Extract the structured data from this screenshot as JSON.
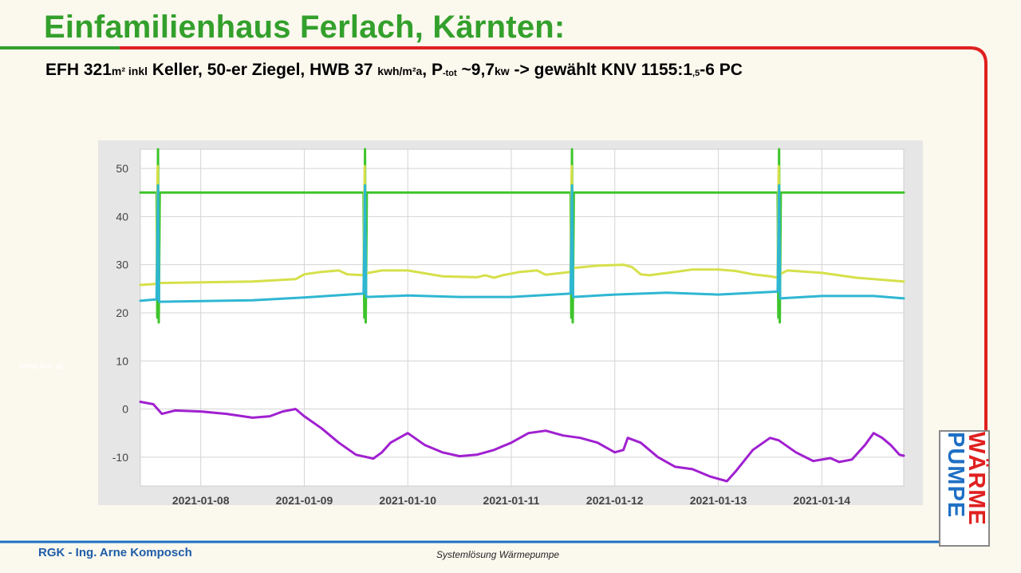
{
  "slide": {
    "title": "Einfamilienhaus Ferlach, Kärnten:",
    "subtitle_parts": {
      "p1": "EFH 321",
      "p2": "m² inkl",
      "p3": " Keller, 50-er Ziegel, HWB 37 ",
      "p4": "kwh/m²a",
      "p5": ", P",
      "p6": "-tot",
      "p7": " ~9,7",
      "p8": "kw",
      "p9": " -> gewählt KNV 1155:1",
      "p10": ",5",
      "p11": "-6 PC"
    },
    "watermark": "www.knv.at",
    "logo_line1": "WÄRME",
    "logo_line2": "PUMPE",
    "footer_left": "RGK - Ing. Arne Komposch",
    "footer_center": "Systemlösung Wärmepumpe"
  },
  "colors": {
    "title_green": "#33a02c",
    "frame_red": "#e02020",
    "frame_green": "#33a02c",
    "footer_blue": "#1f5da8",
    "series_green": "#3ec42c",
    "series_yellow": "#d6e04a",
    "series_cyan": "#2fb7d2",
    "series_purple": "#a020d0"
  },
  "chart_data": {
    "type": "line",
    "x_axis": {
      "type": "time",
      "start": "2021-01-07T10:00",
      "end": "2021-01-14T19:00",
      "tick_labels": [
        "2021-01-08",
        "2021-01-09",
        "2021-01-10",
        "2021-01-11",
        "2021-01-12",
        "2021-01-13",
        "2021-01-14"
      ]
    },
    "y_axis": {
      "ylim": [
        -16,
        54
      ],
      "ticks": [
        50,
        40,
        30,
        20,
        10,
        0,
        -10
      ]
    },
    "grid": true,
    "legend": "none",
    "series": [
      {
        "color": "#3ec42c",
        "points": [
          [
            "2021-01-07T10:00",
            45
          ],
          [
            "2021-01-07T13:45",
            45
          ],
          [
            "2021-01-07T13:55",
            19
          ],
          [
            "2021-01-07T14:05",
            54
          ],
          [
            "2021-01-07T14:15",
            18
          ],
          [
            "2021-01-07T14:30",
            45
          ],
          [
            "2021-01-09T13:45",
            45
          ],
          [
            "2021-01-09T13:55",
            19
          ],
          [
            "2021-01-09T14:05",
            54
          ],
          [
            "2021-01-09T14:15",
            18
          ],
          [
            "2021-01-09T14:30",
            45
          ],
          [
            "2021-01-11T13:45",
            45
          ],
          [
            "2021-01-11T13:55",
            19
          ],
          [
            "2021-01-11T14:05",
            54
          ],
          [
            "2021-01-11T14:15",
            18
          ],
          [
            "2021-01-11T14:30",
            45
          ],
          [
            "2021-01-13T13:45",
            45
          ],
          [
            "2021-01-13T13:55",
            19
          ],
          [
            "2021-01-13T14:05",
            54
          ],
          [
            "2021-01-13T14:15",
            18
          ],
          [
            "2021-01-13T14:30",
            45
          ],
          [
            "2021-01-14T19:00",
            45
          ]
        ]
      },
      {
        "color": "#d6e04a",
        "points": [
          [
            "2021-01-07T10:00",
            25.8
          ],
          [
            "2021-01-07T13:45",
            26.0
          ],
          [
            "2021-01-07T14:00",
            50.5
          ],
          [
            "2021-01-07T14:15",
            26.2
          ],
          [
            "2021-01-08T12:00",
            26.5
          ],
          [
            "2021-01-08T22:00",
            27.0
          ],
          [
            "2021-01-09T00:00",
            28.0
          ],
          [
            "2021-01-09T04:00",
            28.5
          ],
          [
            "2021-01-09T08:00",
            28.8
          ],
          [
            "2021-01-09T10:00",
            28.0
          ],
          [
            "2021-01-09T13:45",
            27.8
          ],
          [
            "2021-01-09T14:00",
            50.5
          ],
          [
            "2021-01-09T14:15",
            28.2
          ],
          [
            "2021-01-09T18:00",
            28.8
          ],
          [
            "2021-01-10T00:00",
            28.8
          ],
          [
            "2021-01-10T08:00",
            27.6
          ],
          [
            "2021-01-10T16:00",
            27.4
          ],
          [
            "2021-01-10T18:00",
            27.8
          ],
          [
            "2021-01-10T20:00",
            27.3
          ],
          [
            "2021-01-10T22:00",
            27.8
          ],
          [
            "2021-01-11T02:00",
            28.5
          ],
          [
            "2021-01-11T06:00",
            28.8
          ],
          [
            "2021-01-11T08:00",
            27.9
          ],
          [
            "2021-01-11T13:45",
            28.5
          ],
          [
            "2021-01-11T14:00",
            50.5
          ],
          [
            "2021-01-11T14:15",
            29.3
          ],
          [
            "2021-01-11T20:00",
            29.8
          ],
          [
            "2021-01-12T02:00",
            30.0
          ],
          [
            "2021-01-12T04:00",
            29.5
          ],
          [
            "2021-01-12T06:00",
            28.0
          ],
          [
            "2021-01-12T08:00",
            27.8
          ],
          [
            "2021-01-12T14:00",
            28.5
          ],
          [
            "2021-01-12T18:00",
            29.0
          ],
          [
            "2021-01-13T00:00",
            29.0
          ],
          [
            "2021-01-13T04:00",
            28.7
          ],
          [
            "2021-01-13T08:00",
            28.0
          ],
          [
            "2021-01-13T12:00",
            27.6
          ],
          [
            "2021-01-13T13:45",
            27.3
          ],
          [
            "2021-01-13T14:00",
            50.5
          ],
          [
            "2021-01-13T14:15",
            28.0
          ],
          [
            "2021-01-13T16:00",
            28.8
          ],
          [
            "2021-01-14T00:00",
            28.3
          ],
          [
            "2021-01-14T08:00",
            27.3
          ],
          [
            "2021-01-14T19:00",
            26.5
          ]
        ]
      },
      {
        "color": "#2fb7d2",
        "points": [
          [
            "2021-01-07T10:00",
            22.5
          ],
          [
            "2021-01-07T13:45",
            22.8
          ],
          [
            "2021-01-07T14:05",
            46.5
          ],
          [
            "2021-01-07T14:20",
            22.3
          ],
          [
            "2021-01-08T12:00",
            22.6
          ],
          [
            "2021-01-09T00:00",
            23.2
          ],
          [
            "2021-01-09T13:45",
            24.0
          ],
          [
            "2021-01-09T14:05",
            46.5
          ],
          [
            "2021-01-09T14:20",
            23.3
          ],
          [
            "2021-01-10T00:00",
            23.6
          ],
          [
            "2021-01-10T12:00",
            23.3
          ],
          [
            "2021-01-11T00:00",
            23.3
          ],
          [
            "2021-01-11T13:45",
            24.0
          ],
          [
            "2021-01-11T14:05",
            46.5
          ],
          [
            "2021-01-11T14:20",
            23.3
          ],
          [
            "2021-01-12T00:00",
            23.8
          ],
          [
            "2021-01-12T12:00",
            24.2
          ],
          [
            "2021-01-13T00:00",
            23.8
          ],
          [
            "2021-01-13T13:45",
            24.4
          ],
          [
            "2021-01-13T14:05",
            46.5
          ],
          [
            "2021-01-13T14:20",
            23.0
          ],
          [
            "2021-01-14T00:00",
            23.5
          ],
          [
            "2021-01-14T12:00",
            23.5
          ],
          [
            "2021-01-14T19:00",
            23.0
          ]
        ]
      },
      {
        "color": "#a020d0",
        "points": [
          [
            "2021-01-07T10:00",
            1.5
          ],
          [
            "2021-01-07T13:00",
            1.0
          ],
          [
            "2021-01-07T15:00",
            -1.0
          ],
          [
            "2021-01-07T18:00",
            -0.3
          ],
          [
            "2021-01-08T00:00",
            -0.5
          ],
          [
            "2021-01-08T06:00",
            -1.0
          ],
          [
            "2021-01-08T12:00",
            -1.8
          ],
          [
            "2021-01-08T16:00",
            -1.5
          ],
          [
            "2021-01-08T19:00",
            -0.5
          ],
          [
            "2021-01-08T22:00",
            0.0
          ],
          [
            "2021-01-09T00:00",
            -1.5
          ],
          [
            "2021-01-09T04:00",
            -4.0
          ],
          [
            "2021-01-09T08:00",
            -7.0
          ],
          [
            "2021-01-09T12:00",
            -9.5
          ],
          [
            "2021-01-09T16:00",
            -10.3
          ],
          [
            "2021-01-09T18:00",
            -9.0
          ],
          [
            "2021-01-09T20:00",
            -7.0
          ],
          [
            "2021-01-10T00:00",
            -5.0
          ],
          [
            "2021-01-10T04:00",
            -7.5
          ],
          [
            "2021-01-10T08:00",
            -9.0
          ],
          [
            "2021-01-10T12:00",
            -9.8
          ],
          [
            "2021-01-10T16:00",
            -9.5
          ],
          [
            "2021-01-10T20:00",
            -8.5
          ],
          [
            "2021-01-11T00:00",
            -7.0
          ],
          [
            "2021-01-11T04:00",
            -5.0
          ],
          [
            "2021-01-11T08:00",
            -4.5
          ],
          [
            "2021-01-11T12:00",
            -5.5
          ],
          [
            "2021-01-11T16:00",
            -6.0
          ],
          [
            "2021-01-11T20:00",
            -7.0
          ],
          [
            "2021-01-12T00:00",
            -9.0
          ],
          [
            "2021-01-12T02:00",
            -8.5
          ],
          [
            "2021-01-12T03:00",
            -6.0
          ],
          [
            "2021-01-12T06:00",
            -7.0
          ],
          [
            "2021-01-12T10:00",
            -10.0
          ],
          [
            "2021-01-12T14:00",
            -12.0
          ],
          [
            "2021-01-12T18:00",
            -12.5
          ],
          [
            "2021-01-12T22:00",
            -14.0
          ],
          [
            "2021-01-13T02:00",
            -15.0
          ],
          [
            "2021-01-13T04:00",
            -13.0
          ],
          [
            "2021-01-13T08:00",
            -8.5
          ],
          [
            "2021-01-13T12:00",
            -6.0
          ],
          [
            "2021-01-13T14:00",
            -6.5
          ],
          [
            "2021-01-13T18:00",
            -9.0
          ],
          [
            "2021-01-13T22:00",
            -10.8
          ],
          [
            "2021-01-14T02:00",
            -10.2
          ],
          [
            "2021-01-14T04:00",
            -11.0
          ],
          [
            "2021-01-14T07:00",
            -10.5
          ],
          [
            "2021-01-14T10:00",
            -7.5
          ],
          [
            "2021-01-14T12:00",
            -5.0
          ],
          [
            "2021-01-14T14:00",
            -6.0
          ],
          [
            "2021-01-14T16:00",
            -7.5
          ],
          [
            "2021-01-14T17:00",
            -8.5
          ],
          [
            "2021-01-14T18:00",
            -9.5
          ],
          [
            "2021-01-14T19:00",
            -9.7
          ]
        ]
      }
    ]
  }
}
